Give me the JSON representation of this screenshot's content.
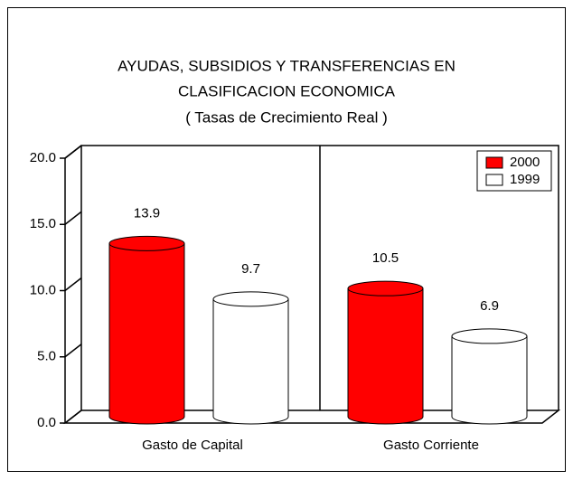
{
  "chart_data": {
    "type": "bar3d",
    "title": [
      "AYUDAS, SUBSIDIOS Y TRANSFERENCIAS EN",
      "CLASIFICACION ECONOMICA"
    ],
    "subtitle": "( Tasas de Crecimiento Real )",
    "categories": [
      "Gasto de Capital",
      "Gasto Corriente"
    ],
    "series": [
      {
        "name": "2000",
        "color": "#ff0000",
        "values": [
          13.9,
          10.5
        ]
      },
      {
        "name": "1999",
        "color": "#ffffff",
        "values": [
          9.7,
          6.9
        ]
      }
    ],
    "ylim": [
      0,
      20
    ],
    "yticks": [
      {
        "value": 0,
        "label": "0.0"
      },
      {
        "value": 5,
        "label": "5.0"
      },
      {
        "value": 10,
        "label": "10.0"
      },
      {
        "value": 15,
        "label": "15.0"
      },
      {
        "value": 20,
        "label": "20.0"
      }
    ],
    "legend": "top-right"
  }
}
